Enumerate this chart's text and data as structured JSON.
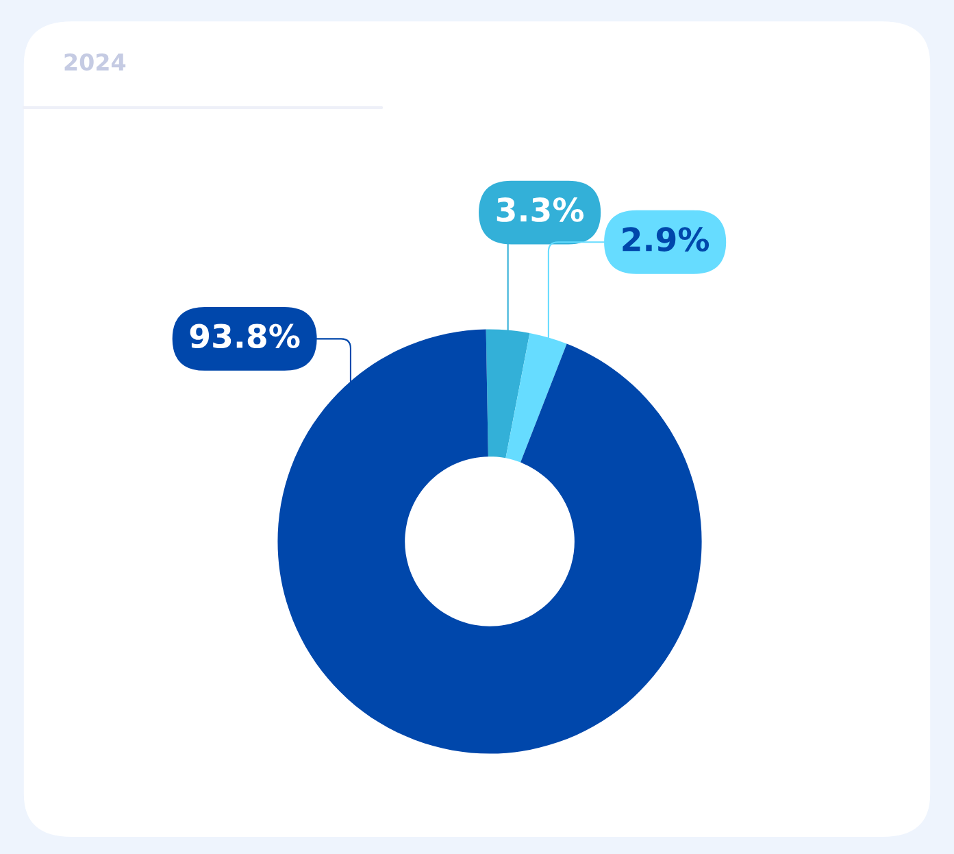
{
  "chart_data": {
    "type": "donut",
    "title": "2024",
    "categories": [
      null,
      null,
      null
    ],
    "values": [
      3.3,
      2.9,
      93.8
    ],
    "colors": [
      "#33b0d8",
      "#66dcff",
      "#0047ab"
    ],
    "value_labels": [
      "3.3%",
      "2.9%",
      "93.8%"
    ]
  }
}
